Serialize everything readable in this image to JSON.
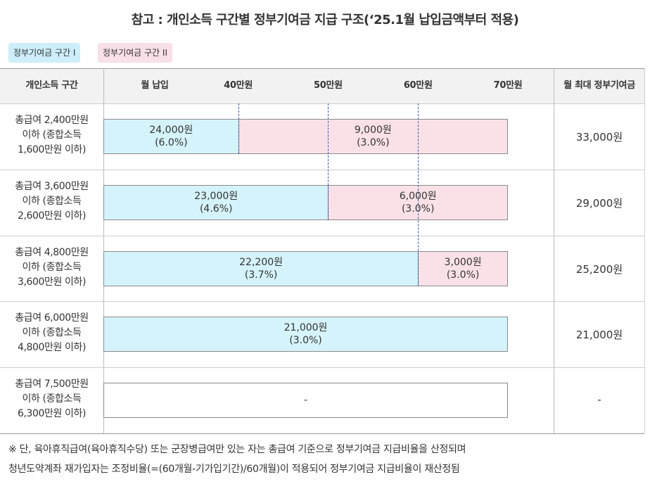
{
  "title": "참고 : 개인소득 구간별 정부기여금 지급 구조(‘25.1월 납입금액부터 적용)",
  "legend": {
    "section1": "정부기여금 구간 I",
    "section2": "정부기여금 구간 II",
    "section1_color": "#cdeefa",
    "section2_color": "#f9dfe7"
  },
  "header": {
    "income_col": "개인소득 구간",
    "payment_col": "월 납입",
    "total_col": "월 최대 정부기여금"
  },
  "chart_data": {
    "type": "bar",
    "orientation": "horizontal-stacked",
    "x_unit": "만원",
    "x_ticks": [
      "40만원",
      "50만원",
      "60만원",
      "70만원"
    ],
    "x_tick_values": [
      40,
      50,
      60,
      70
    ],
    "xlim": [
      25,
      70
    ],
    "rows": [
      {
        "label": "총급여 2,400만원 이하 (종합소득 1,600만원 이하)",
        "label_lines": [
          "총급여 2,400만원",
          "이하 (종합소득",
          "1,600만원 이하)"
        ],
        "total": "33,000원",
        "segments": [
          {
            "section": 1,
            "from": 25,
            "to": 40,
            "amount": "24,000원",
            "rate": "(6.0%)"
          },
          {
            "section": 2,
            "from": 40,
            "to": 70,
            "amount": "9,000원",
            "rate": "(3.0%)"
          }
        ]
      },
      {
        "label": "총급여 3,600만원 이하 (종합소득 2,600만원 이하)",
        "label_lines": [
          "총급여 3,600만원",
          "이하 (종합소득",
          "2,600만원 이하)"
        ],
        "total": "29,000원",
        "segments": [
          {
            "section": 1,
            "from": 25,
            "to": 50,
            "amount": "23,000원",
            "rate": "(4.6%)"
          },
          {
            "section": 2,
            "from": 50,
            "to": 70,
            "amount": "6,000원",
            "rate": "(3.0%)"
          }
        ]
      },
      {
        "label": "총급여 4,800만원 이하 (종합소득 3,600만원 이하)",
        "label_lines": [
          "총급여 4,800만원",
          "이하 (종합소득",
          "3,600만원 이하)"
        ],
        "total": "25,200원",
        "segments": [
          {
            "section": 1,
            "from": 25,
            "to": 60,
            "amount": "22,200원",
            "rate": "(3.7%)"
          },
          {
            "section": 2,
            "from": 60,
            "to": 70,
            "amount": "3,000원",
            "rate": "(3.0%)"
          }
        ]
      },
      {
        "label": "총급여 6,000만원 이하 (종합소득 4,800만원 이하)",
        "label_lines": [
          "총급여 6,000만원",
          "이하 (종합소득",
          "4,800만원 이하)"
        ],
        "total": "21,000원",
        "segments": [
          {
            "section": 1,
            "from": 25,
            "to": 70,
            "amount": "21,000원",
            "rate": "(3.0%)"
          }
        ]
      },
      {
        "label": "총급여 7,500만원 이하 (종합소득 6,300만원 이하)",
        "label_lines": [
          "총급여 7,500만원",
          "이하 (종합소득",
          "6,300만원 이하)"
        ],
        "total": "-",
        "segments": [
          {
            "section": 0,
            "from": 25,
            "to": 70,
            "amount": "-",
            "rate": ""
          }
        ]
      }
    ]
  },
  "notes": [
    "※ 단, 육아휴직급여(육아휴직수당) 또는 군장병급여만 있는 자는 총급여 기준으로 정부기여금 지급비율을 산정되며",
    "청년도약계좌 재가입자는 조정비율(=(60개월-기가입기간)/60개월)이 적용되어 정부기여금 지급비율이 재산정됨"
  ]
}
